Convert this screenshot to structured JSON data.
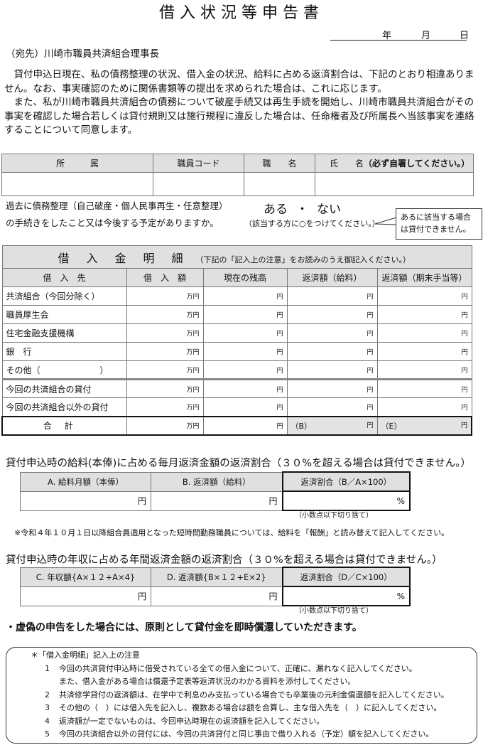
{
  "title": "借入状況等申告書",
  "date": {
    "year": "年",
    "month": "月",
    "day": "日"
  },
  "addressee": "（宛先）川崎市職員共済組合理事長",
  "paragraphs": [
    "貸付申込日現在、私の債務整理の状況、借入金の状況、給料に占める返済割合は、下記のとおり相違ありません。なお、事実確認のために関係書類等の提出を求められた場合は、これに応じます。",
    "また、私が川崎市職員共済組合の債務について破産手続又は再生手続を開始し、川崎市職員共済組合がその事実を確認した場合若しくは貸付規則又は施行規程に違反した場合は、任命権者及び所属長へ当該事実を連絡することについて同意します。"
  ],
  "info_table": {
    "headers": [
      "所　　　属",
      "職員コード",
      "職　　名",
      "氏　　名"
    ],
    "name_note": "（必ず自署してください。）"
  },
  "debt_question": {
    "line1": "過去に債務整理（自己破産・個人民事再生・任意整理）",
    "line2": "の手続きをしたこと又は今後する予定がありますか。",
    "yes": "ある",
    "dot": "・",
    "no": "ない",
    "mark_note": "（該当する方に○をつけてください。）",
    "callout": "あるに該当する場合は貸付できません。"
  },
  "loan_table": {
    "title": "借入金明細",
    "title_note": "（下記の「記入上の注意」をお読みのうえ御記入ください。）",
    "headers": [
      "借　入　先",
      "借　入　額",
      "現在の残高",
      "返済額（給料）",
      "返済額（期末手当等）"
    ],
    "rows": [
      "共済組合（今回分除く）",
      "職員厚生会",
      "住宅金融支援機構",
      "銀　行",
      "その他（　　　　　　　）",
      "今回の共済組合の貸付",
      "今回の共済組合以外の貸付"
    ],
    "total": "合計",
    "unit_man": "万円",
    "unit_yen": "円",
    "label_b": "（B）",
    "label_e": "（E）"
  },
  "monthly": {
    "title": "貸付申込時の給料(本俸)に占める毎月返済金額の返済割合（３０%を超える場合は貸付できません。）",
    "headers": [
      "A. 給料月額（本俸）",
      "B. 返済額（給料）",
      "返済割合（B／A×100）"
    ],
    "unit_yen": "円",
    "unit_pct": "%",
    "round_note": "（小数点以下切り捨て）"
  },
  "reiwa_note": "※令和４年１０月１日以降組合員適用となった短時間勤務職員については、給料を「報酬」と読み替えて記入してください。",
  "annual": {
    "title": "貸付申込時の年収に占める年間返済金額の返済割合（３０%を超える場合は貸付できません。）",
    "headers": [
      "C. 年収額{A×１２+A×4}",
      "D. 返済額{B×１２+E×2}",
      "返済割合（D／C×100）"
    ],
    "unit_yen": "円",
    "unit_pct": "%",
    "round_note": "（小数点以下切り捨て）"
  },
  "warning": "・虚偽の申告をした場合には、原則として貸付金を即時償還していただきます。",
  "notes": {
    "heading": "＊「借入金明細」記入上の注意",
    "items": [
      {
        "n": "1",
        "text": "今回の共済貸付申込時に借受されている全ての借入金について、正確に、漏れなく記入してください。",
        "cont": "また、借入金がある場合は償還予定表等返済状況のわかる資料を添付してください。"
      },
      {
        "n": "2",
        "text": "共済修学貸付の返済額は、在学中で利息のみ支払っている場合でも卒業後の元利金償還額を記入してください。"
      },
      {
        "n": "3",
        "text": "その他の（　）には借入先を記入し、複数ある場合は額を合算し、主な借入先を（　）に記入してください。"
      },
      {
        "n": "4",
        "text": "返済額が一定でないものは、今回申込時現在の返済額を記入してください。"
      },
      {
        "n": "5",
        "text": "今回の共済組合以外の貸付には、今回の共済貸付と同じ事由で借り入れる（予定）額を記入してください。"
      }
    ]
  }
}
